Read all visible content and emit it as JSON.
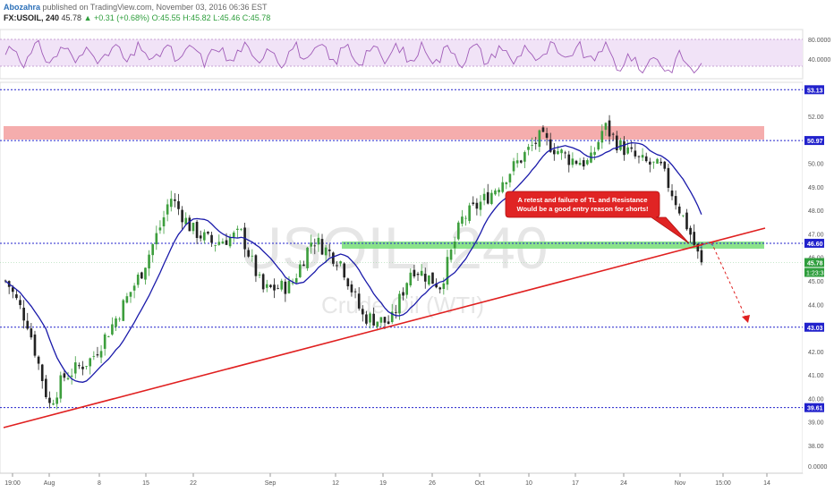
{
  "header": {
    "author": "Abozahra",
    "published": "published on TradingView.com, November 03, 2016 06:36 EST",
    "symbol": "FX:USOIL, 240",
    "last": "45.78",
    "change": "+0.31 (+0.68%)",
    "open": "O:45.55",
    "high": "H:45.82",
    "low": "L:45.46",
    "close": "C:45.78"
  },
  "watermark": {
    "symbol": "USOIL, 240",
    "name": "Crude Oil (WTI)"
  },
  "annotation": {
    "line1": "A retest and failure of TL and Resistance",
    "line2": "Would be a good entry reason for shorts!"
  },
  "colors": {
    "up": "#3d9e3d",
    "down": "#222222",
    "ma": "#1a1aaa",
    "trendline": "#e02020",
    "resistance_zone": "#f4a4a4",
    "support_zone": "#7ee07e",
    "rsi": "#a05cb8",
    "rsi_band": "#f1e3f7",
    "level_line": "#2222cc",
    "callout": "#e02424",
    "price_badge": "#2222cc",
    "last_badge": "#2e9e3c"
  },
  "rsi_axis": {
    "labels": [
      "80.0000",
      "40.0000"
    ]
  },
  "price_axis": {
    "ticks": [
      "52.00",
      "51.00",
      "50.00",
      "49.00",
      "48.00",
      "47.00",
      "46.00",
      "45.00",
      "44.00",
      "43.00",
      "42.00",
      "41.00",
      "40.00",
      "39.00",
      "38.00",
      "0.0000"
    ],
    "level_badges": [
      "53.13",
      "50.97",
      "46.60",
      "43.03",
      "39.61"
    ],
    "last_price": "45.78",
    "countdown": "1:23:35"
  },
  "time_axis": {
    "labels": [
      "19:00",
      "Aug",
      "8",
      "15",
      "22",
      "Sep",
      "12",
      "19",
      "26",
      "Oct",
      "10",
      "17",
      "24",
      "Nov",
      "15:00",
      "14"
    ]
  },
  "chart_data": {
    "type": "candlestick",
    "symbol": "FX:USOIL",
    "interval": "240",
    "ylim": [
      37.5,
      53.5
    ],
    "horizontal_levels": [
      53.13,
      50.97,
      46.6,
      43.03,
      39.61
    ],
    "resistance_zone": [
      50.97,
      51.5
    ],
    "support_zone": [
      46.35,
      46.6
    ],
    "trendline": {
      "from": [
        "Jul 27",
        38.7
      ],
      "to": [
        "Nov 14",
        47.3
      ]
    },
    "projection_target": 44.3,
    "close_path": [
      {
        "t": "Jul 27",
        "c": 45.0
      },
      {
        "t": "Jul 30",
        "c": 43.2
      },
      {
        "t": "Aug 2",
        "c": 39.7
      },
      {
        "t": "Aug 4",
        "c": 40.9
      },
      {
        "t": "Aug 8",
        "c": 41.7
      },
      {
        "t": "Aug 11",
        "c": 43.2
      },
      {
        "t": "Aug 15",
        "c": 45.4
      },
      {
        "t": "Aug 18",
        "c": 47.6
      },
      {
        "t": "Aug 19",
        "c": 48.6
      },
      {
        "t": "Aug 22",
        "c": 47.2
      },
      {
        "t": "Aug 25",
        "c": 46.6
      },
      {
        "t": "Aug 29",
        "c": 47.0
      },
      {
        "t": "Sep 1",
        "c": 44.6
      },
      {
        "t": "Sep 5",
        "c": 44.8
      },
      {
        "t": "Sep 8",
        "c": 46.8
      },
      {
        "t": "Sep 12",
        "c": 45.8
      },
      {
        "t": "Sep 15",
        "c": 43.5
      },
      {
        "t": "Sep 19",
        "c": 43.2
      },
      {
        "t": "Sep 22",
        "c": 45.6
      },
      {
        "t": "Sep 26",
        "c": 44.8
      },
      {
        "t": "Sep 29",
        "c": 47.6
      },
      {
        "t": "Oct 3",
        "c": 48.7
      },
      {
        "t": "Oct 7",
        "c": 50.1
      },
      {
        "t": "Oct 10",
        "c": 51.1
      },
      {
        "t": "Oct 14",
        "c": 50.2
      },
      {
        "t": "Oct 17",
        "c": 50.0
      },
      {
        "t": "Oct 19",
        "c": 51.6
      },
      {
        "t": "Oct 21",
        "c": 50.8
      },
      {
        "t": "Oct 24",
        "c": 50.1
      },
      {
        "t": "Oct 27",
        "c": 49.8
      },
      {
        "t": "Oct 31",
        "c": 47.1
      },
      {
        "t": "Nov 2",
        "c": 45.4
      },
      {
        "t": "Nov 3",
        "c": 45.78
      }
    ],
    "rsi_levels": [
      80,
      40
    ],
    "xlabel": "",
    "ylabel": ""
  }
}
